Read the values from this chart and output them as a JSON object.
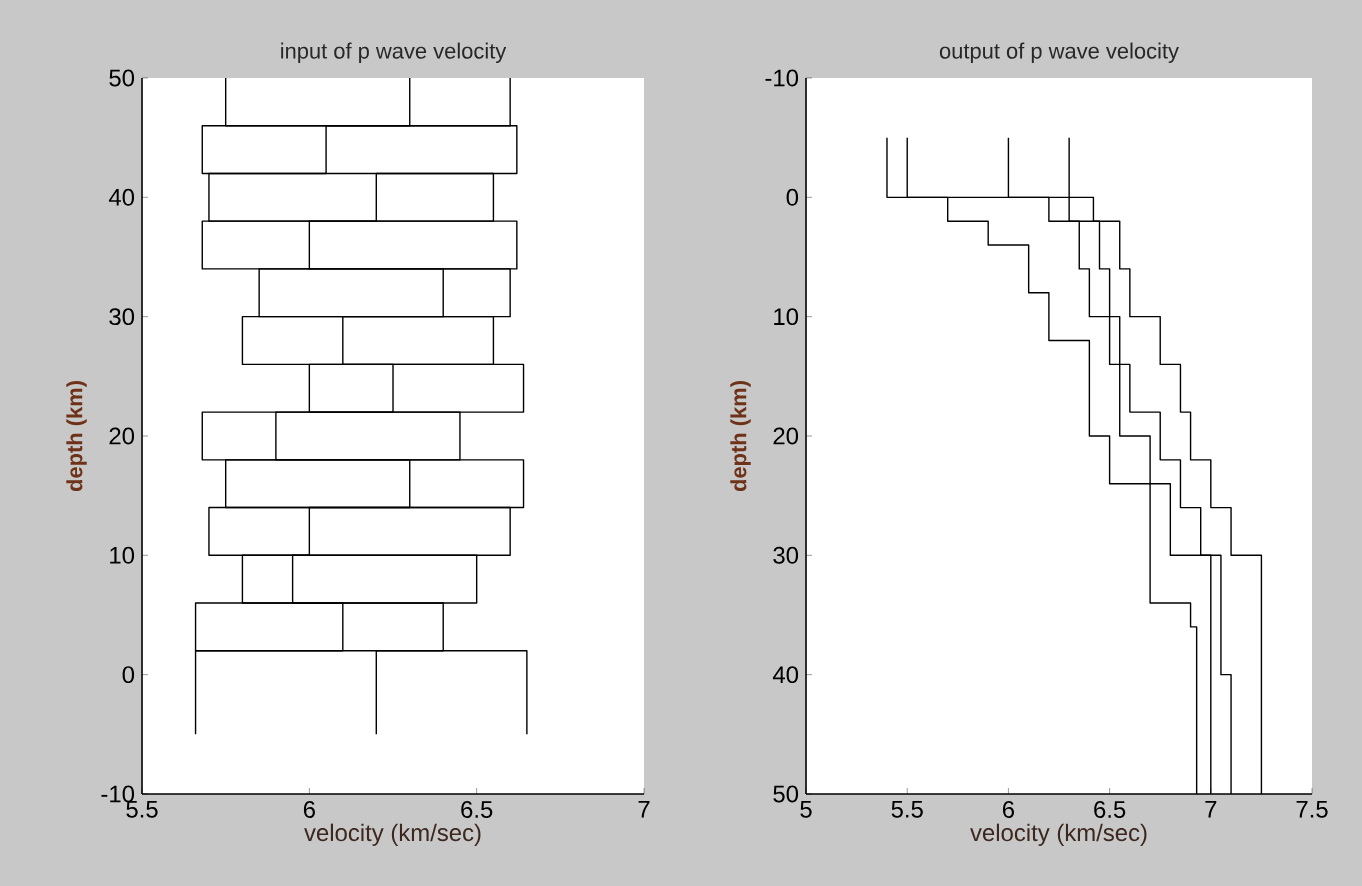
{
  "chart_data": [
    {
      "type": "line",
      "title": "input of p wave velocity",
      "xlabel": "velocity (km/sec)",
      "ylabel": "depth (km)",
      "xlim": [
        5.5,
        7
      ],
      "ylim": [
        -10,
        50
      ],
      "xticks": [
        5.5,
        6,
        6.5,
        7
      ],
      "yticks": [
        -10,
        0,
        10,
        20,
        30,
        40,
        50
      ],
      "series": [
        {
          "color": "#000000",
          "x": [
            6.65,
            6.65,
            5.66,
            5.66,
            6.5,
            6.5,
            5.7,
            5.7,
            6.3,
            6.3,
            5.9,
            5.9,
            6.64,
            6.64,
            5.8,
            5.8,
            6.4,
            6.4,
            5.68,
            5.68,
            6.2,
            6.2,
            6.62,
            6.62,
            5.75,
            5.75
          ],
          "values": [
            -5,
            2,
            2,
            6,
            6,
            10,
            10,
            14,
            14,
            18,
            18,
            22,
            22,
            26,
            26,
            30,
            30,
            34,
            34,
            38,
            38,
            42,
            42,
            46,
            46,
            50
          ]
        },
        {
          "color": "#000000",
          "x": [
            5.66,
            5.66,
            6.1,
            6.1,
            5.95,
            5.95,
            6.6,
            6.6,
            5.75,
            5.75,
            6.45,
            6.45,
            6.0,
            6.0,
            6.55,
            6.55,
            5.85,
            5.85,
            6.62,
            6.62,
            5.7,
            5.7,
            6.05,
            6.05,
            6.6,
            6.6
          ],
          "values": [
            -5,
            2,
            2,
            6,
            6,
            10,
            10,
            14,
            14,
            18,
            18,
            22,
            22,
            26,
            26,
            30,
            30,
            34,
            34,
            38,
            38,
            42,
            42,
            46,
            46,
            50
          ]
        },
        {
          "color": "#000000",
          "x": [
            6.2,
            6.2,
            6.4,
            6.4,
            5.8,
            5.8,
            6.0,
            6.0,
            6.64,
            6.64,
            5.68,
            5.68,
            6.25,
            6.25,
            6.1,
            6.1,
            6.6,
            6.6,
            6.0,
            6.0,
            6.55,
            6.55,
            5.68,
            5.68,
            6.3,
            6.3
          ],
          "values": [
            -5,
            2,
            2,
            6,
            6,
            10,
            10,
            14,
            14,
            18,
            18,
            22,
            22,
            26,
            26,
            30,
            30,
            34,
            34,
            38,
            38,
            42,
            42,
            46,
            46,
            50
          ]
        }
      ]
    },
    {
      "type": "line",
      "title": "output of p wave velocity",
      "xlabel": "velocity (km/sec)",
      "ylabel": "depth (km)",
      "xlim": [
        5,
        7.5
      ],
      "ylim": [
        50,
        -10
      ],
      "xticks": [
        5,
        5.5,
        6,
        6.5,
        7,
        7.5
      ],
      "yticks": [
        -10,
        0,
        10,
        20,
        30,
        40,
        50
      ],
      "series": [
        {
          "color": "#000000",
          "x": [
            5.5,
            5.5,
            5.7,
            5.7,
            5.9,
            5.9,
            6.1,
            6.1,
            6.2,
            6.2,
            6.4,
            6.4,
            6.5,
            6.5,
            6.7,
            6.7,
            6.9,
            6.9,
            6.93,
            6.93
          ],
          "values": [
            -5,
            0,
            0,
            2,
            2,
            4,
            4,
            8,
            8,
            12,
            12,
            20,
            20,
            24,
            24,
            34,
            34,
            36,
            36,
            50
          ]
        },
        {
          "color": "#000000",
          "x": [
            6.0,
            6.0,
            6.3,
            6.3,
            6.45,
            6.45,
            6.5,
            6.5,
            6.55,
            6.55,
            6.6,
            6.6,
            6.75,
            6.75,
            6.85,
            6.85,
            6.95,
            6.95,
            7.05,
            7.05,
            7.1,
            7.1
          ],
          "values": [
            -5,
            0,
            0,
            2,
            2,
            6,
            6,
            10,
            10,
            14,
            14,
            18,
            18,
            22,
            22,
            26,
            26,
            30,
            30,
            40,
            40,
            50
          ]
        },
        {
          "color": "#000000",
          "x": [
            6.3,
            6.3,
            6.42,
            6.42,
            6.55,
            6.55,
            6.6,
            6.6,
            6.75,
            6.75,
            6.85,
            6.85,
            6.9,
            6.9,
            7.0,
            7.0,
            7.1,
            7.1,
            7.25,
            7.25
          ],
          "values": [
            -5,
            0,
            0,
            2,
            2,
            6,
            6,
            10,
            10,
            14,
            14,
            18,
            18,
            22,
            22,
            26,
            26,
            30,
            30,
            50
          ]
        },
        {
          "color": "#000000",
          "x": [
            5.4,
            5.4,
            6.2,
            6.2,
            6.35,
            6.35,
            6.4,
            6.4,
            6.5,
            6.5,
            6.55,
            6.55,
            6.7,
            6.7,
            6.8,
            6.8,
            7.0,
            7.0
          ],
          "values": [
            -5,
            0,
            0,
            2,
            2,
            6,
            6,
            10,
            10,
            14,
            14,
            20,
            20,
            24,
            24,
            30,
            30,
            50
          ]
        }
      ]
    }
  ]
}
